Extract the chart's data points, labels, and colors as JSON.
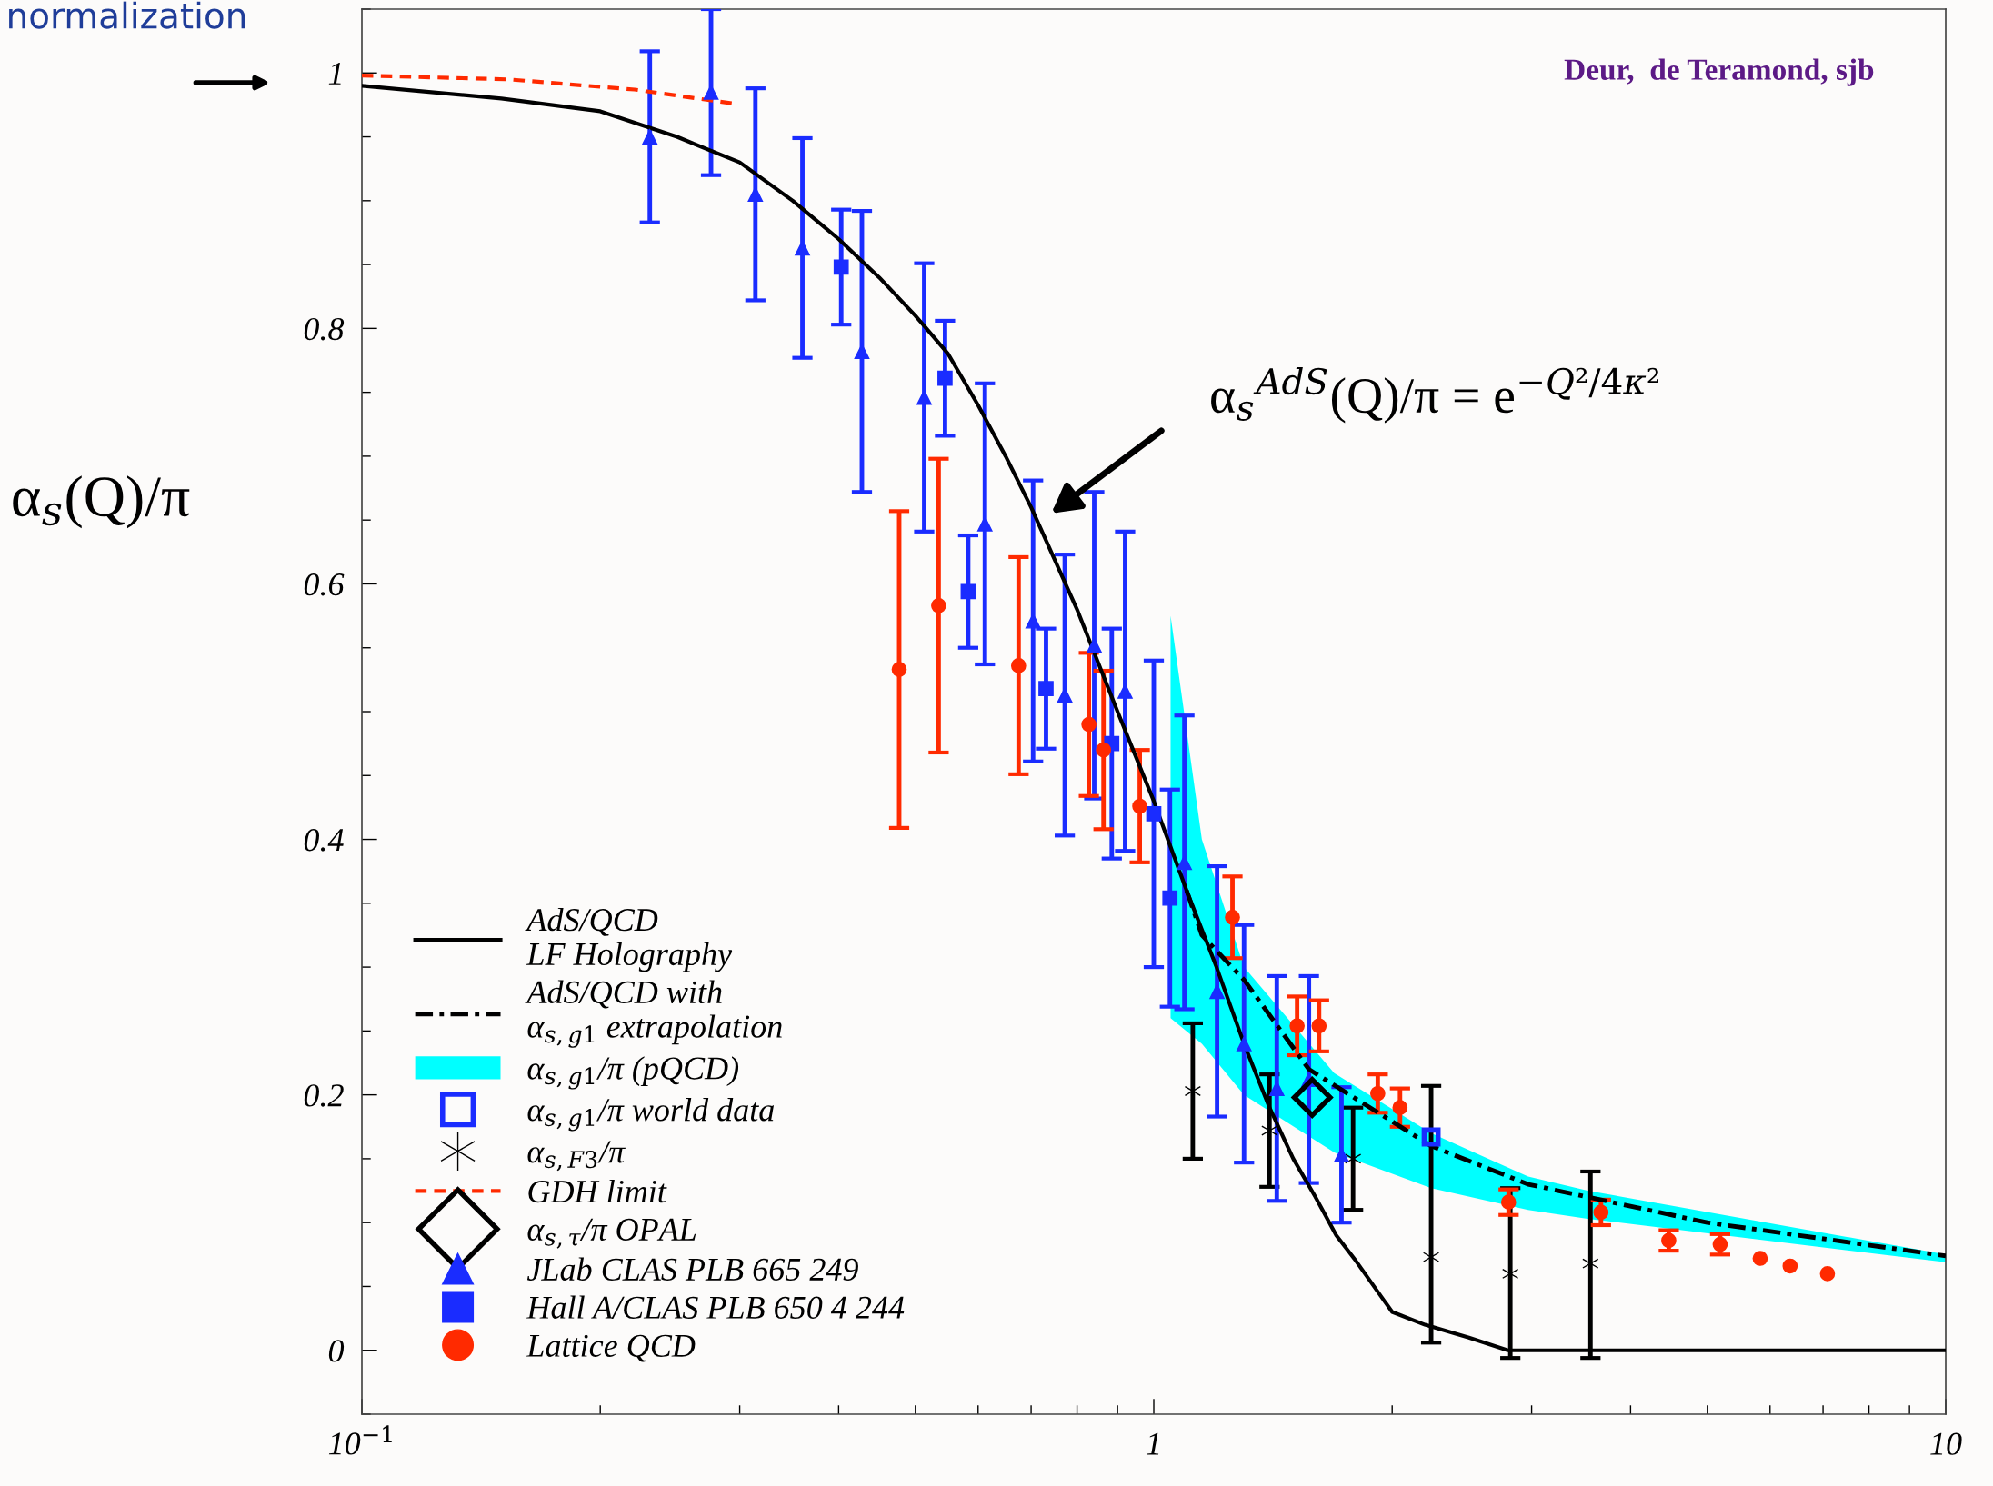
{
  "chart_data": {
    "type": "scatter",
    "ylabel": "α$_{s}$(Q)/π",
    "annotations": [
      "normalization",
      "Deur,  de Teramond, sjb",
      "α$_{s}$$^{AdS}$(Q)/π = e$^{−Q²/4κ²}$"
    ],
    "log": "x",
    "xlim": [
      0.1,
      10
    ],
    "ylim": [
      -0.05,
      1.05
    ],
    "xticks": [
      {
        "value": 0.1,
        "label": "10$^{−1}$"
      },
      1,
      10
    ],
    "yticks": [
      0,
      0.2,
      0.4,
      0.6,
      0.8,
      1
    ],
    "grid": false,
    "legend": "bottom left",
    "series": [
      {
        "type": "line",
        "name": "AdS/QCD\nLF Holography",
        "color": "#000000",
        "line_style": "solid",
        "x": [
          0.1,
          0.15,
          0.2,
          0.25,
          0.3,
          0.35,
          0.4,
          0.45,
          0.5,
          0.55,
          0.6,
          0.65,
          0.7,
          0.8,
          0.9,
          1.0,
          1.1,
          1.2,
          1.3,
          1.4,
          1.5,
          1.6,
          1.7,
          1.8,
          2.0,
          2.2,
          2.5,
          2.8,
          3.2,
          4,
          10
        ],
        "values": [
          0.99,
          0.98,
          0.97,
          0.95,
          0.93,
          0.9,
          0.87,
          0.84,
          0.81,
          0.78,
          0.74,
          0.7,
          0.66,
          0.58,
          0.5,
          0.43,
          0.36,
          0.3,
          0.24,
          0.19,
          0.15,
          0.12,
          0.09,
          0.07,
          0.03,
          0.02,
          0.01,
          0,
          0,
          0,
          0
        ]
      },
      {
        "type": "line",
        "name": "AdS/QCD with\nα$_{s,g1}$ extrapolation",
        "color": "#000000",
        "line_style": "dashdot",
        "x": [
          1.1,
          1.15,
          1.3,
          1.57,
          2.24,
          2.97,
          5.0,
          10
        ],
        "values": [
          0.36,
          0.325,
          0.29,
          0.22,
          0.16,
          0.13,
          0.1,
          0.074
        ]
      },
      {
        "type": "area",
        "name": "α$_{s,g1}$/π (pQCD)",
        "color": "#00ffff",
        "x": [
          1.05,
          1.15,
          1.3,
          1.69,
          2.24,
          2.97,
          3.53,
          10
        ],
        "values": [
          null,
          null,
          null,
          null,
          null,
          null,
          null,
          null
        ],
        "lower": [
          0.26,
          0.24,
          0.2,
          0.155,
          0.127,
          0.11,
          0.103,
          0.069
        ],
        "upper": [
          0.575,
          0.4,
          0.3,
          0.217,
          0.17,
          0.136,
          0.125,
          0.075
        ]
      },
      {
        "name": "α$_{s,g1}$/π world data",
        "color": "#1a2cff",
        "marker": "square",
        "x": [
          2.24
        ],
        "values": [
          0.167
        ]
      },
      {
        "name": "α$_{s,F3}$/π",
        "color": "#000000",
        "marker": "cross",
        "x": [
          1.12,
          1.4,
          1.785,
          2.24,
          2.82,
          3.56
        ],
        "values": [
          0.203,
          0.172,
          0.15,
          0.073,
          0.06,
          0.068
        ],
        "errors": [
          0.053,
          0.044,
          0.04,
          [
            0.006,
            0.207
          ],
          [
            -0.006,
            0.127
          ],
          [
            -0.006,
            0.14
          ]
        ]
      },
      {
        "type": "line",
        "name": "GDH limit",
        "color": "#ff2a00",
        "line_style": "dashed",
        "x": [
          0.1,
          0.153,
          0.221,
          0.295
        ],
        "values": [
          0.998,
          0.995,
          0.987,
          0.976
        ]
      },
      {
        "name": "α$_{s,τ}$/π OPAL",
        "color": "#000000",
        "marker": "diamond",
        "x": [
          1.585
        ],
        "values": [
          0.198
        ]
      },
      {
        "name": "JLab CLAS PLB 665 249",
        "color": "#1a2cff",
        "marker": "triangle",
        "x": [
          0.231,
          0.276,
          0.314,
          0.36,
          0.428,
          0.513,
          0.612,
          0.704,
          0.772,
          0.841,
          0.92,
          1.093,
          1.202,
          1.3,
          1.43,
          1.57,
          1.726
        ],
        "values": [
          0.95,
          0.985,
          0.905,
          0.863,
          0.782,
          0.746,
          0.647,
          0.571,
          0.513,
          0.552,
          0.516,
          0.382,
          0.281,
          0.24,
          0.205,
          0.212,
          0.153
        ],
        "errors": [
          0.067,
          0.065,
          0.083,
          0.086,
          0.11,
          0.105,
          0.11,
          0.11,
          0.11,
          0.12,
          0.125,
          0.115,
          0.098,
          0.093,
          0.088,
          0.081,
          0.053
        ]
      },
      {
        "name": "Hall A/CLAS PLB 650 4 244",
        "color": "#1a2cff",
        "marker": "square",
        "x": [
          0.403,
          0.545,
          0.583,
          0.731,
          0.885,
          1.0,
          1.048
        ],
        "values": [
          0.848,
          0.761,
          0.594,
          0.518,
          0.475,
          0.42,
          0.354
        ],
        "errors": [
          0.045,
          0.045,
          0.044,
          0.047,
          0.09,
          0.12,
          0.085
        ]
      },
      {
        "name": "Lattice QCD",
        "color": "#ff2a00",
        "marker": "circle",
        "x": [
          0.477,
          0.535,
          0.675,
          0.828,
          0.864,
          0.96,
          1.257,
          1.517,
          1.617,
          1.918,
          2.046,
          2.806,
          3.67,
          4.47,
          5.19,
          5.83,
          6.36,
          7.09
        ],
        "values": [
          0.533,
          0.583,
          0.536,
          0.49,
          0.47,
          0.426,
          0.339,
          0.254,
          0.254,
          0.201,
          0.19,
          0.116,
          0.108,
          0.086,
          0.083,
          0.072,
          0.066,
          0.06
        ],
        "errors": [
          0.124,
          0.115,
          0.085,
          0.056,
          0.062,
          0.044,
          0.032,
          0.023,
          0.02,
          0.015,
          0.015,
          0.01,
          0.01,
          0.008,
          0.008,
          null,
          null,
          null
        ]
      }
    ]
  }
}
